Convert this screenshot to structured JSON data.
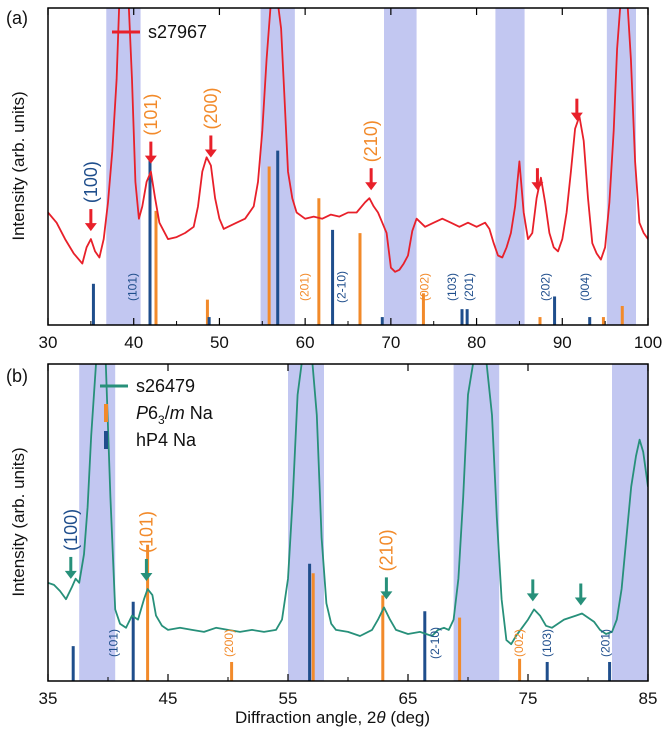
{
  "figure": {
    "xlabel_prefix": "Diffraction angle, 2",
    "xlabel_theta": "θ",
    "xlabel_suffix": " (deg)"
  },
  "colors": {
    "panel_a_line": "#e8202a",
    "panel_b_line": "#27907a",
    "p63m_sticks": "#f28a2a",
    "hp4_sticks": "#1f4e8c",
    "shade": "#b7bdee"
  },
  "chart_data": [
    {
      "panel_label": "(a)",
      "type": "line",
      "xlabel": "",
      "ylabel": "Intensity (arb. units)",
      "xlim": [
        30,
        100
      ],
      "xticks": [
        "30",
        "40",
        "50",
        "60",
        "70",
        "80",
        "90",
        "100"
      ],
      "legend": [
        {
          "name": "s27967",
          "color": "#e8202a"
        }
      ],
      "legend_position": "top-left",
      "shaded_ranges": [
        [
          36.8,
          40.8
        ],
        [
          54.8,
          58.8
        ],
        [
          69.2,
          73.0
        ],
        [
          82.2,
          85.6
        ],
        [
          95.2,
          98.6
        ]
      ],
      "series": [
        {
          "name": "s27967",
          "color": "#e8202a",
          "x": [
            30,
            31,
            32,
            33,
            34,
            34.5,
            35,
            35.5,
            36,
            36.5,
            37,
            37.5,
            38,
            38.3,
            38.6,
            39,
            39.4,
            39.8,
            40.2,
            40.6,
            41,
            41.5,
            42,
            42.5,
            43,
            44,
            45,
            46,
            47,
            47.5,
            48,
            48.5,
            49,
            49.5,
            50,
            50.5,
            51,
            52,
            53,
            54,
            54.5,
            55,
            55.5,
            56,
            56.4,
            56.8,
            57.2,
            57.6,
            58,
            58.5,
            59,
            60,
            61,
            62,
            63,
            64,
            65,
            66,
            67,
            67.5,
            68,
            68.5,
            69,
            69.5,
            70,
            70.5,
            71,
            71.5,
            72,
            72.5,
            73,
            74,
            75,
            76,
            77,
            78,
            79,
            80,
            81,
            81.5,
            82,
            82.5,
            83,
            83.5,
            84,
            84.5,
            85,
            85.5,
            86,
            86.5,
            87,
            87.5,
            88,
            88.5,
            89,
            89.5,
            90,
            90.5,
            91,
            91.5,
            92,
            92.5,
            93,
            93.5,
            94,
            94.5,
            95,
            95.5,
            96,
            96.4,
            96.8,
            97.2,
            97.6,
            98,
            98.5,
            99,
            99.5,
            100
          ],
          "values": [
            0.55,
            0.5,
            0.42,
            0.35,
            0.3,
            0.38,
            0.42,
            0.36,
            0.33,
            0.42,
            0.6,
            0.85,
            1.2,
            1.55,
            1.58,
            1.58,
            1.58,
            1.2,
            0.7,
            0.52,
            0.58,
            0.7,
            0.75,
            0.62,
            0.5,
            0.42,
            0.43,
            0.45,
            0.48,
            0.58,
            0.75,
            0.82,
            0.78,
            0.62,
            0.52,
            0.47,
            0.48,
            0.5,
            0.52,
            0.58,
            0.7,
            0.95,
            1.3,
            1.58,
            1.58,
            1.58,
            1.45,
            1.1,
            0.75,
            0.62,
            0.55,
            0.52,
            0.53,
            0.52,
            0.54,
            0.53,
            0.55,
            0.55,
            0.6,
            0.62,
            0.58,
            0.55,
            0.5,
            0.45,
            0.28,
            0.26,
            0.27,
            0.3,
            0.34,
            0.46,
            0.52,
            0.48,
            0.5,
            0.52,
            0.5,
            0.48,
            0.5,
            0.48,
            0.5,
            0.47,
            0.4,
            0.34,
            0.33,
            0.38,
            0.45,
            0.58,
            0.8,
            0.55,
            0.42,
            0.45,
            0.62,
            0.72,
            0.6,
            0.45,
            0.38,
            0.36,
            0.42,
            0.55,
            0.75,
            0.96,
            1.02,
            0.9,
            0.62,
            0.4,
            0.35,
            0.32,
            0.38,
            0.6,
            0.95,
            1.35,
            1.58,
            1.58,
            1.58,
            1.3,
            0.8,
            0.5,
            0.45,
            0.42
          ]
        }
      ],
      "sticks": [
        {
          "series": "P6_3/m Na",
          "x": 42.6,
          "h": 0.36
        },
        {
          "series": "P6_3/m Na",
          "x": 48.6,
          "h": 0.08
        },
        {
          "series": "P6_3/m Na",
          "x": 55.8,
          "h": 0.5
        },
        {
          "series": "P6_3/m Na",
          "x": 61.6,
          "h": 0.4
        },
        {
          "series": "P6_3/m Na",
          "x": 66.4,
          "h": 0.29
        },
        {
          "series": "P6_3/m Na",
          "x": 73.8,
          "h": 0.1
        },
        {
          "series": "P6_3/m Na",
          "x": 87.4,
          "h": 0.025
        },
        {
          "series": "P6_3/m Na",
          "x": 94.8,
          "h": 0.025
        },
        {
          "series": "P6_3/m Na",
          "x": 97,
          "h": 0.06
        },
        {
          "series": "hP4 Na",
          "x": 35.3,
          "h": 0.13
        },
        {
          "series": "hP4 Na",
          "x": 41.9,
          "h": 0.52
        },
        {
          "series": "hP4 Na",
          "x": 48.8,
          "h": 0.025
        },
        {
          "series": "hP4 Na",
          "x": 56.8,
          "h": 0.55
        },
        {
          "series": "hP4 Na",
          "x": 63.2,
          "h": 0.3
        },
        {
          "series": "hP4 Na",
          "x": 69,
          "h": 0.025
        },
        {
          "series": "hP4 Na",
          "x": 78.3,
          "h": 0.05
        },
        {
          "series": "hP4 Na",
          "x": 78.9,
          "h": 0.05
        },
        {
          "series": "hP4 Na",
          "x": 89.1,
          "h": 0.09
        },
        {
          "series": "hP4 Na",
          "x": 93.2,
          "h": 0.025
        }
      ],
      "stick_labels": [
        {
          "text": "(101)",
          "x": 40.3,
          "color": "#1f4e8c"
        },
        {
          "text": "(201)",
          "x": 60.4,
          "color": "#f28a2a"
        },
        {
          "text": "(2-10)",
          "x": 64.7,
          "color": "#1f4e8c"
        },
        {
          "text": "(002)",
          "x": 74.4,
          "color": "#f28a2a"
        },
        {
          "text": "(103)",
          "x": 77.6,
          "color": "#1f4e8c"
        },
        {
          "text": "(201)",
          "x": 79.6,
          "color": "#1f4e8c"
        },
        {
          "text": "(202)",
          "x": 88.5,
          "color": "#1f4e8c"
        },
        {
          "text": "(004)",
          "x": 93.1,
          "color": "#1f4e8c"
        }
      ],
      "peak_annotations": [
        {
          "text": "(100)",
          "x": 35.0,
          "color": "#1f4e8c",
          "arrow_color": "#e8202a"
        },
        {
          "text": "(101)",
          "x": 42.0,
          "color": "#f28a2a",
          "arrow_color": "#e8202a"
        },
        {
          "text": "(200)",
          "x": 49.0,
          "color": "#f28a2a",
          "arrow_color": "#e8202a"
        },
        {
          "text": "(210)",
          "x": 67.7,
          "color": "#f28a2a",
          "arrow_color": "#e8202a"
        },
        {
          "text": "",
          "x": 87.1,
          "color": "#e8202a",
          "arrow_color": "#e8202a"
        },
        {
          "text": "",
          "x": 91.7,
          "color": "#e8202a",
          "arrow_color": "#e8202a"
        }
      ]
    },
    {
      "panel_label": "(b)",
      "type": "line",
      "xlabel": "Diffraction angle, 2θ (deg)",
      "ylabel": "Intensity (arb. units)",
      "xlim": [
        35,
        85
      ],
      "xticks": [
        "35",
        "45",
        "55",
        "65",
        "75",
        "85"
      ],
      "legend": [
        {
          "name": "s26479",
          "color": "#27907a",
          "kind": "line"
        },
        {
          "name": "P6₃/m Na",
          "color": "#f28a2a",
          "kind": "stick",
          "italic_part": "P",
          "sub": "3",
          "mid": "6",
          "rest_italic": "m",
          "tail": " Na"
        },
        {
          "name": "hP4 Na",
          "color": "#1f4e8c",
          "kind": "stick"
        }
      ],
      "legend_position": "top-left",
      "shaded_ranges": [
        [
          37.6,
          40.6
        ],
        [
          55.0,
          58.0
        ],
        [
          68.8,
          72.6
        ],
        [
          82.0,
          85.0
        ]
      ],
      "series": [
        {
          "name": "s26479",
          "color": "#27907a",
          "x": [
            35,
            35.5,
            36,
            36.5,
            37,
            37.3,
            37.6,
            38,
            38.3,
            38.6,
            39,
            39.4,
            39.8,
            40.2,
            40.6,
            41,
            41.5,
            42,
            42.5,
            43,
            43.3,
            43.7,
            44,
            44.5,
            45,
            46,
            47,
            48,
            49,
            50,
            51,
            52,
            53,
            54,
            54.5,
            55,
            55.4,
            55.8,
            56.2,
            56.6,
            57,
            57.4,
            57.8,
            58.2,
            58.6,
            59,
            60,
            61,
            62,
            62.5,
            63,
            63.5,
            64,
            65,
            66,
            67,
            67.5,
            68,
            68.4,
            68.8,
            69.2,
            69.6,
            70,
            70.5,
            71,
            71.5,
            72,
            72.4,
            72.8,
            73.2,
            73.6,
            74,
            74.5,
            75,
            75.5,
            76,
            76.5,
            77,
            78,
            79,
            79.5,
            80,
            80.5,
            81,
            81.5,
            82,
            82.4,
            82.8,
            83.2,
            83.6,
            84,
            84.3,
            84.6,
            85
          ],
          "values": [
            0.48,
            0.47,
            0.44,
            0.4,
            0.46,
            0.5,
            0.48,
            0.62,
            0.85,
            1.2,
            1.55,
            1.58,
            1.58,
            0.9,
            0.35,
            0.28,
            0.26,
            0.32,
            0.3,
            0.4,
            0.45,
            0.42,
            0.32,
            0.27,
            0.25,
            0.26,
            0.25,
            0.24,
            0.26,
            0.25,
            0.24,
            0.25,
            0.24,
            0.25,
            0.3,
            0.5,
            0.9,
            1.4,
            1.58,
            1.58,
            1.58,
            1.3,
            0.7,
            0.38,
            0.28,
            0.25,
            0.24,
            0.22,
            0.25,
            0.3,
            0.36,
            0.3,
            0.25,
            0.23,
            0.24,
            0.22,
            0.25,
            0.26,
            0.25,
            0.3,
            0.5,
            0.9,
            1.4,
            1.58,
            1.58,
            1.58,
            1.3,
            0.8,
            0.4,
            0.2,
            0.18,
            0.22,
            0.26,
            0.3,
            0.35,
            0.32,
            0.27,
            0.26,
            0.3,
            0.32,
            0.33,
            0.31,
            0.29,
            0.25,
            0.23,
            0.24,
            0.3,
            0.45,
            0.7,
            0.95,
            1.1,
            1.18,
            1.12,
            0.95
          ]
        }
      ],
      "sticks": [
        {
          "series": "P6_3/m Na",
          "x": 43.3,
          "h": 0.43
        },
        {
          "series": "P6_3/m Na",
          "x": 50.3,
          "h": 0.06
        },
        {
          "series": "P6_3/m Na",
          "x": 57.1,
          "h": 0.34
        },
        {
          "series": "P6_3/m Na",
          "x": 62.9,
          "h": 0.27
        },
        {
          "series": "P6_3/m Na",
          "x": 69.3,
          "h": 0.2
        },
        {
          "series": "P6_3/m Na",
          "x": 74.3,
          "h": 0.07
        },
        {
          "series": "hP4 Na",
          "x": 37.1,
          "h": 0.11
        },
        {
          "series": "hP4 Na",
          "x": 42.1,
          "h": 0.25
        },
        {
          "series": "hP4 Na",
          "x": 56.8,
          "h": 0.37
        },
        {
          "series": "hP4 Na",
          "x": 66.4,
          "h": 0.22
        },
        {
          "series": "hP4 Na",
          "x": 76.6,
          "h": 0.06
        },
        {
          "series": "hP4 Na",
          "x": 81.8,
          "h": 0.06
        }
      ],
      "stick_labels": [
        {
          "text": "(101)",
          "x": 40.8,
          "color": "#1f4e8c"
        },
        {
          "text": "(200)",
          "x": 50.4,
          "color": "#f28a2a"
        },
        {
          "text": "(2-10)",
          "x": 67.6,
          "color": "#1f4e8c"
        },
        {
          "text": "(002)",
          "x": 74.6,
          "color": "#f28a2a"
        },
        {
          "text": "(103)",
          "x": 76.9,
          "color": "#1f4e8c"
        },
        {
          "text": "(201)",
          "x": 81.8,
          "color": "#1f4e8c"
        }
      ],
      "peak_annotations": [
        {
          "text": "(100)",
          "x": 36.9,
          "color": "#1f4e8c",
          "arrow_color": "#27907a"
        },
        {
          "text": "(101)",
          "x": 43.2,
          "color": "#f28a2a",
          "arrow_color": "#27907a"
        },
        {
          "text": "(210)",
          "x": 63.2,
          "color": "#f28a2a",
          "arrow_color": "#27907a"
        },
        {
          "text": "",
          "x": 75.4,
          "color": "#27907a",
          "arrow_color": "#27907a"
        },
        {
          "text": "",
          "x": 79.4,
          "color": "#27907a",
          "arrow_color": "#27907a"
        }
      ]
    }
  ]
}
